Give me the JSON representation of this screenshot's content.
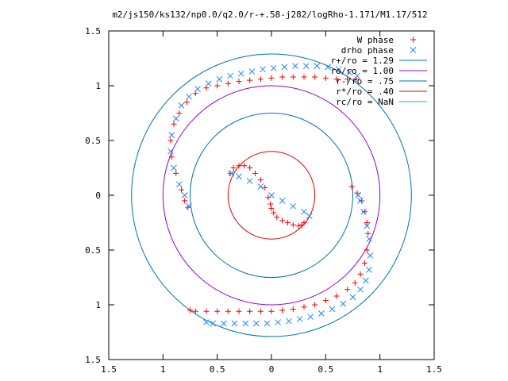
{
  "chart_data": {
    "type": "scatter",
    "title": "m2/js150/ks132/np0.0/q2.0/r-+.58-j282/logRho-1.171/M1.17/512",
    "xlabel": "",
    "ylabel": "",
    "xlim": [
      -1.5,
      1.5
    ],
    "ylim": [
      -1.5,
      1.5
    ],
    "x_ticks": [
      -1.5,
      -1,
      -0.5,
      0,
      0.5,
      1,
      1.5
    ],
    "x_tick_labels": [
      "1.5",
      "1",
      "0.5",
      "0",
      "0.5",
      "1",
      "1.5"
    ],
    "y_ticks": [
      -1.5,
      -1,
      -0.5,
      0,
      0.5,
      1,
      1.5
    ],
    "y_tick_labels": [
      "1.5",
      "1",
      "0.5",
      "0",
      "0.5",
      "1",
      "1.5"
    ],
    "grid": false,
    "legend_position": "top-right",
    "circles": [
      {
        "name": "r+/ro = 1.29",
        "radius": 1.29,
        "color": "#0072b2"
      },
      {
        "name": "ro/ro = 1.00",
        "radius": 1.0,
        "color": "#9400d3"
      },
      {
        "name": "r-/ro = .75",
        "radius": 0.75,
        "color": "#0072b2"
      },
      {
        "name": "r*/ro = .40",
        "radius": 0.4,
        "color": "#e00000"
      },
      {
        "name": "rc/ro = NaN",
        "radius": null,
        "color": "#00c0c0"
      }
    ],
    "series": [
      {
        "name": "W phase",
        "marker": "+",
        "color": "#ff0000",
        "x": [
          -0.38,
          -0.35,
          -0.3,
          -0.25,
          -0.2,
          -0.15,
          -0.1,
          -0.06,
          -0.03,
          -0.01,
          0.0,
          0.02,
          0.05,
          0.1,
          0.15,
          0.2,
          0.25,
          0.28,
          0.3,
          -0.77,
          -0.8,
          -0.83,
          -0.88,
          -0.92,
          -0.93,
          -0.9,
          -0.85,
          -0.78,
          -0.7,
          -0.6,
          -0.5,
          -0.4,
          -0.3,
          -0.2,
          -0.1,
          0.0,
          0.1,
          0.2,
          0.3,
          0.4,
          0.5,
          0.6,
          0.7,
          0.78,
          0.74,
          0.79,
          0.83,
          0.86,
          0.88,
          0.89,
          0.88,
          0.86,
          0.82,
          0.77,
          0.7,
          0.6,
          0.5,
          0.4,
          0.3,
          0.2,
          0.1,
          0.0,
          -0.1,
          -0.2,
          -0.3,
          -0.4,
          -0.5,
          -0.6,
          -0.7,
          -0.75
        ],
        "y": [
          0.2,
          0.25,
          0.27,
          0.27,
          0.25,
          0.2,
          0.14,
          0.07,
          -0.02,
          -0.08,
          -0.12,
          -0.16,
          -0.2,
          -0.23,
          -0.25,
          -0.27,
          -0.28,
          -0.27,
          -0.25,
          -0.11,
          -0.05,
          0.05,
          0.2,
          0.35,
          0.5,
          0.65,
          0.75,
          0.85,
          0.93,
          0.98,
          1.0,
          1.02,
          1.04,
          1.05,
          1.06,
          1.07,
          1.08,
          1.08,
          1.08,
          1.08,
          1.07,
          1.06,
          1.06,
          1.06,
          0.08,
          0.02,
          -0.05,
          -0.15,
          -0.25,
          -0.35,
          -0.5,
          -0.62,
          -0.72,
          -0.8,
          -0.86,
          -0.92,
          -0.96,
          -1.0,
          -1.02,
          -1.04,
          -1.05,
          -1.06,
          -1.06,
          -1.06,
          -1.06,
          -1.06,
          -1.06,
          -1.06,
          -1.06,
          -1.05
        ]
      },
      {
        "name": "drho phase",
        "marker": "x",
        "color": "#1f86ff",
        "x": [
          -0.37,
          -0.3,
          -0.2,
          -0.1,
          0.0,
          0.1,
          0.2,
          0.3,
          0.35,
          -0.76,
          -0.8,
          -0.85,
          -0.9,
          -0.93,
          -0.92,
          -0.88,
          -0.83,
          -0.76,
          -0.68,
          -0.58,
          -0.48,
          -0.38,
          -0.28,
          -0.18,
          -0.08,
          0.02,
          0.12,
          0.22,
          0.32,
          0.42,
          0.52,
          0.62,
          0.72,
          0.79,
          0.8,
          0.82,
          0.85,
          0.88,
          0.9,
          0.91,
          0.9,
          0.87,
          0.82,
          0.75,
          0.66,
          0.56,
          0.46,
          0.36,
          0.26,
          0.16,
          0.06,
          -0.04,
          -0.14,
          -0.24,
          -0.34,
          -0.44,
          -0.54,
          -0.6
        ],
        "y": [
          0.2,
          0.17,
          0.13,
          0.08,
          0.0,
          -0.05,
          -0.1,
          -0.15,
          -0.19,
          -0.1,
          0.0,
          0.1,
          0.25,
          0.4,
          0.55,
          0.7,
          0.82,
          0.9,
          0.97,
          1.02,
          1.06,
          1.09,
          1.11,
          1.13,
          1.15,
          1.16,
          1.17,
          1.18,
          1.18,
          1.18,
          1.17,
          1.15,
          1.12,
          1.09,
          0.0,
          -0.05,
          -0.15,
          -0.28,
          -0.4,
          -0.55,
          -0.68,
          -0.78,
          -0.86,
          -0.93,
          -0.99,
          -1.04,
          -1.08,
          -1.11,
          -1.13,
          -1.15,
          -1.16,
          -1.17,
          -1.17,
          -1.17,
          -1.17,
          -1.17,
          -1.17,
          -1.16
        ]
      }
    ]
  }
}
